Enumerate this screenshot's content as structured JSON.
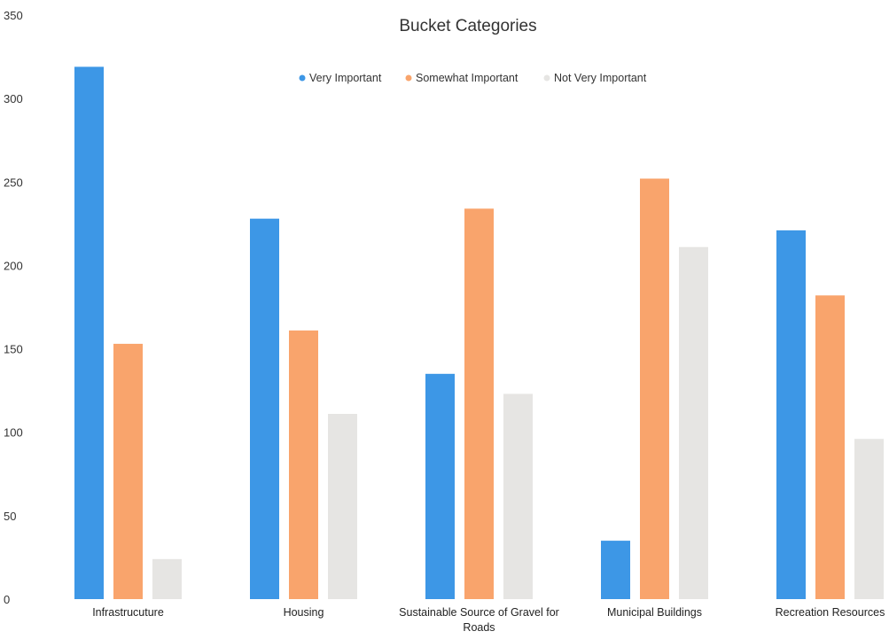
{
  "chart_data": {
    "type": "bar",
    "title": "Bucket Categories",
    "xlabel": "",
    "ylabel": "",
    "ylim": [
      0,
      350
    ],
    "yticks": [
      0,
      50,
      100,
      150,
      200,
      250,
      300,
      350
    ],
    "grid": false,
    "legend_position": "top",
    "categories": [
      [
        "Infrastrucuture"
      ],
      [
        "Housing"
      ],
      [
        "Sustainable Source of Gravel for",
        "Roads"
      ],
      [
        "Municipal Buildings"
      ],
      [
        "Recreation Resources"
      ]
    ],
    "series": [
      {
        "name": "Very Important",
        "color": "#3d97e6",
        "values": [
          319,
          228,
          135,
          35,
          221
        ]
      },
      {
        "name": "Somewhat Important",
        "color": "#f9a46c",
        "values": [
          153,
          161,
          234,
          252,
          182
        ]
      },
      {
        "name": "Not Very Important",
        "color": "#e6e5e3",
        "values": [
          24,
          111,
          123,
          211,
          96
        ]
      }
    ]
  }
}
